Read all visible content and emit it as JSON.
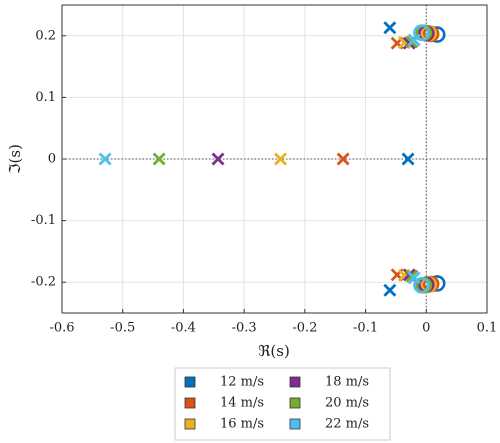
{
  "chart_data": {
    "type": "pole-zero",
    "xlabel": "ℜ(s)",
    "ylabel": "ℑ(s)",
    "xlim": [
      -0.6,
      0.1
    ],
    "xticks": [
      -0.6,
      -0.5,
      -0.4,
      -0.3,
      -0.2,
      -0.1,
      0,
      0.1
    ],
    "ylim": [
      -0.25,
      0.25
    ],
    "yticks": [
      -0.2,
      -0.1,
      0,
      0.1,
      0.2
    ],
    "grid": true,
    "zero_lines": true,
    "legend": "bottom",
    "series": [
      {
        "name": "12 m/s",
        "color": "#0072bd",
        "pole_re": [
          -0.03,
          -0.06,
          -0.06
        ],
        "pole_im": [
          0,
          0.213,
          -0.213
        ],
        "zero_re": [
          0.018,
          0.018
        ],
        "zero_im": [
          0.202,
          -0.202
        ]
      },
      {
        "name": "14 m/s",
        "color": "#d95319",
        "pole_re": [
          -0.137,
          -0.048,
          -0.048
        ],
        "pole_im": [
          0,
          0.188,
          -0.188
        ],
        "zero_re": [
          0.008,
          0.008
        ],
        "zero_im": [
          0.203,
          -0.203
        ]
      },
      {
        "name": "16 m/s",
        "color": "#edb120",
        "pole_re": [
          -0.24,
          -0.036,
          -0.036
        ],
        "pole_im": [
          0,
          0.189,
          -0.189
        ],
        "zero_re": [
          0.004,
          0.004
        ],
        "zero_im": [
          0.204,
          -0.204
        ]
      },
      {
        "name": "18 m/s",
        "color": "#7e2f8e",
        "pole_re": [
          -0.343,
          -0.028,
          -0.028
        ],
        "pole_im": [
          0,
          0.188,
          -0.188
        ],
        "zero_re": [
          0,
          0
        ],
        "zero_im": [
          0.204,
          -0.204
        ]
      },
      {
        "name": "20 m/s",
        "color": "#77ac30",
        "pole_re": [
          -0.44,
          -0.024,
          -0.024
        ],
        "pole_im": [
          0,
          0.19,
          -0.19
        ],
        "zero_re": [
          -0.004,
          -0.004
        ],
        "zero_im": [
          0.205,
          -0.205
        ]
      },
      {
        "name": "22 m/s",
        "color": "#4dbeee",
        "pole_re": [
          -0.529,
          -0.02,
          -0.02
        ],
        "pole_im": [
          0,
          0.193,
          -0.193
        ],
        "zero_re": [
          -0.008,
          -0.008
        ],
        "zero_im": [
          0.205,
          -0.205
        ]
      }
    ]
  }
}
